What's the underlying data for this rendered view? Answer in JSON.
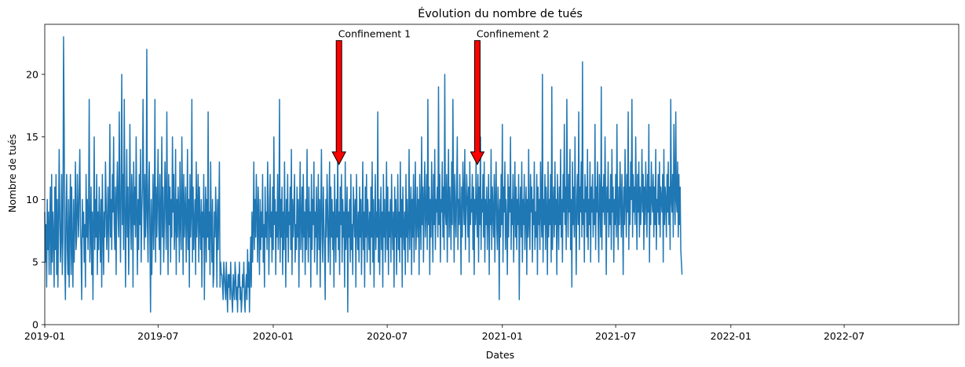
{
  "chart_data": {
    "type": "line",
    "title": "Évolution du nombre de tués",
    "xlabel": "Dates",
    "ylabel": "Nombre de tués",
    "xlim": [
      "2019-01-01",
      "2022-12-31"
    ],
    "ylim": [
      0,
      24
    ],
    "grid": false,
    "line_color": "#1f77b4",
    "x_ticks": [
      {
        "date": "2019-01-01",
        "label": "2019-01"
      },
      {
        "date": "2019-07-01",
        "label": "2019-07"
      },
      {
        "date": "2020-01-01",
        "label": "2020-01"
      },
      {
        "date": "2020-07-01",
        "label": "2020-07"
      },
      {
        "date": "2021-01-01",
        "label": "2021-01"
      },
      {
        "date": "2021-07-01",
        "label": "2021-07"
      },
      {
        "date": "2022-01-01",
        "label": "2022-01"
      },
      {
        "date": "2022-07-01",
        "label": "2022-07"
      }
    ],
    "y_ticks": [
      0,
      5,
      10,
      15,
      20
    ],
    "series": [
      {
        "name": "Nombre de tués",
        "start_date": "2019-01-01",
        "frequency": "daily",
        "values": [
          9,
          5,
          8,
          3,
          10,
          6,
          9,
          4,
          8,
          11,
          4,
          12,
          5,
          9,
          7,
          3,
          11,
          6,
          12,
          4,
          10,
          3,
          8,
          14,
          9,
          5,
          7,
          12,
          4,
          7,
          23,
          16,
          5,
          2,
          9,
          12,
          6,
          4,
          10,
          3,
          8,
          12,
          4,
          11,
          6,
          3,
          10,
          5,
          8,
          13,
          6,
          7,
          12,
          9,
          7,
          11,
          14,
          8,
          6,
          2,
          10,
          7,
          9,
          5,
          8,
          3,
          12,
          7,
          10,
          6,
          9,
          18,
          5,
          7,
          11,
          4,
          9,
          2,
          8,
          15,
          6,
          10,
          7,
          12,
          4,
          9,
          6,
          11,
          8,
          5,
          10,
          3,
          12,
          8,
          4,
          9,
          7,
          13,
          10,
          6,
          8,
          11,
          5,
          9,
          16,
          7,
          10,
          6,
          12,
          9,
          15,
          8,
          6,
          11,
          4,
          10,
          13,
          9,
          7,
          17,
          10,
          5,
          11,
          20,
          8,
          12,
          6,
          18,
          10,
          3,
          9,
          14,
          7,
          11,
          4,
          8,
          16,
          9,
          6,
          12,
          10,
          3,
          13,
          8,
          11,
          7,
          15,
          9,
          4,
          10,
          6,
          12,
          8,
          14,
          5,
          9,
          11,
          18,
          10,
          6,
          12,
          7,
          9,
          22,
          8,
          5,
          11,
          13,
          7,
          1,
          10,
          4,
          8,
          12,
          6,
          9,
          18,
          5,
          11,
          7,
          10,
          14,
          8,
          6,
          12,
          4,
          9,
          15,
          7,
          11,
          5,
          8,
          13,
          10,
          6,
          17,
          9,
          4,
          12,
          8,
          11,
          5,
          10,
          7,
          15,
          9,
          12,
          6,
          8,
          14,
          4,
          10,
          7,
          11,
          9,
          5,
          13,
          8,
          6,
          15,
          10,
          4,
          12,
          7,
          9,
          11,
          5,
          8,
          14,
          6,
          10,
          3,
          12,
          7,
          9,
          18,
          5,
          11,
          6,
          8,
          10,
          4,
          13,
          7,
          9,
          12,
          5,
          11,
          8,
          6,
          10,
          3,
          9,
          7,
          12,
          2,
          8,
          11,
          5,
          10,
          7,
          17,
          6,
          9,
          4,
          13,
          8,
          5,
          10,
          3,
          4,
          9,
          7,
          11,
          8,
          3,
          10,
          6,
          9,
          13,
          3,
          5,
          4,
          4,
          3,
          2,
          5,
          4,
          3,
          2,
          5,
          3,
          1,
          4,
          3,
          4,
          2,
          5,
          3,
          2,
          1,
          4,
          3,
          2,
          5,
          4,
          2,
          3,
          1,
          4,
          3,
          5,
          2,
          3,
          1,
          2,
          4,
          3,
          5,
          2,
          1,
          3,
          4,
          2,
          6,
          3,
          5,
          1,
          4,
          7,
          3,
          9,
          5,
          8,
          13,
          6,
          10,
          7,
          12,
          9,
          5,
          11,
          8,
          4,
          10,
          6,
          9,
          7,
          12,
          5,
          8,
          3,
          11,
          7,
          9,
          6,
          13,
          10,
          4,
          8,
          12,
          7,
          9,
          5,
          11,
          6,
          15,
          8,
          10,
          4,
          9,
          7,
          12,
          6,
          8,
          18,
          5,
          10,
          7,
          11,
          4,
          9,
          6,
          13,
          8,
          3,
          10,
          7,
          12,
          5,
          9,
          8,
          11,
          6,
          14,
          4,
          10,
          7,
          9,
          12,
          5,
          8,
          6,
          11,
          7,
          10,
          3,
          9,
          13,
          6,
          8,
          11,
          5,
          12,
          7,
          9,
          4,
          10,
          6,
          14,
          8,
          5,
          11,
          7,
          9,
          3,
          12,
          6,
          10,
          8,
          13,
          5,
          9,
          7,
          11,
          4,
          8,
          12,
          6,
          10,
          3,
          9,
          14,
          7,
          5,
          11,
          8,
          6,
          2,
          10,
          7,
          12,
          9,
          5,
          8,
          13,
          4,
          11,
          7,
          10,
          6,
          9,
          3,
          12,
          8,
          5,
          10,
          7,
          14,
          6,
          9,
          4,
          11,
          8,
          12,
          5,
          10,
          7,
          9,
          3,
          13,
          6,
          8,
          11,
          1,
          9,
          7,
          10,
          5,
          12,
          6,
          8,
          4,
          11,
          9,
          7,
          10,
          3,
          12,
          8,
          6,
          9,
          5,
          11,
          7,
          10,
          4,
          8,
          13,
          6,
          9,
          3,
          11,
          7,
          12,
          5,
          10,
          8,
          6,
          9,
          4,
          11,
          7,
          13,
          5,
          10,
          3,
          8,
          12,
          6,
          9,
          7,
          17,
          5,
          10,
          4,
          8,
          11,
          6,
          9,
          3,
          12,
          7,
          10,
          5,
          8,
          13,
          6,
          11,
          4,
          9,
          7,
          10,
          5,
          12,
          8,
          6,
          9,
          3,
          11,
          7,
          10,
          4,
          8,
          12,
          6,
          9,
          5,
          13,
          7,
          10,
          3,
          11,
          8,
          6,
          9,
          4,
          12,
          7,
          10,
          5,
          8,
          14,
          6,
          9,
          11,
          4,
          10,
          7,
          12,
          5,
          9,
          13,
          6,
          8,
          11,
          7,
          10,
          4,
          12,
          9,
          6,
          15,
          8,
          11,
          5,
          10,
          13,
          7,
          9,
          12,
          6,
          18,
          8,
          11,
          4,
          10,
          7,
          13,
          9,
          5,
          12,
          8,
          14,
          6,
          10,
          9,
          11,
          7,
          19,
          8,
          12,
          5,
          10,
          9,
          13,
          7,
          11,
          6,
          20,
          9,
          8,
          12,
          5,
          10,
          14,
          7,
          11,
          9,
          6,
          13,
          8,
          18,
          10,
          5,
          12,
          9,
          7,
          11,
          15,
          6,
          10,
          8,
          12,
          9,
          4,
          11,
          7,
          13,
          10,
          8,
          14,
          6,
          9,
          12,
          10,
          7,
          11,
          5,
          13,
          8,
          10,
          9,
          12,
          6,
          11,
          4,
          10,
          8,
          13,
          9,
          7,
          12,
          5,
          11,
          8,
          15,
          6,
          10,
          9,
          12,
          7,
          13,
          5,
          10,
          8,
          11,
          6,
          9,
          12,
          4,
          10,
          8,
          14,
          6,
          11,
          9,
          7,
          12,
          5,
          10,
          13,
          8,
          6,
          11,
          9,
          2,
          10,
          7,
          12,
          8,
          16,
          5,
          11,
          9,
          13,
          6,
          10,
          8,
          4,
          12,
          7,
          11,
          9,
          15,
          6,
          10,
          8,
          12,
          5,
          9,
          13,
          7,
          11,
          6,
          10,
          8,
          12,
          2,
          9,
          11,
          7,
          13,
          5,
          10,
          8,
          12,
          6,
          9,
          11,
          4,
          10,
          7,
          14,
          8,
          6,
          12,
          9,
          11,
          5,
          10,
          8,
          13,
          6,
          9,
          7,
          12,
          4,
          11,
          8,
          10,
          6,
          13,
          9,
          7,
          20,
          5,
          10,
          8,
          12,
          6,
          11,
          9,
          4,
          13,
          7,
          10,
          8,
          12,
          5,
          19,
          6,
          9,
          11,
          7,
          13,
          8,
          10,
          4,
          12,
          9,
          6,
          11,
          8,
          14,
          7,
          10,
          5,
          12,
          9,
          16,
          8,
          11,
          6,
          18,
          10,
          7,
          12,
          9,
          14,
          6,
          10,
          3,
          13,
          8,
          11,
          7,
          15,
          9,
          4,
          10,
          12,
          8,
          17,
          6,
          11,
          9,
          13,
          7,
          21,
          8,
          10,
          5,
          12,
          9,
          11,
          7,
          14,
          6,
          10,
          8,
          13,
          5,
          11,
          9,
          12,
          7,
          10,
          8,
          16,
          6,
          11,
          9,
          13,
          8,
          5,
          12,
          10,
          7,
          19,
          6,
          11,
          9,
          12,
          8,
          15,
          10,
          4,
          11,
          9,
          13,
          7,
          10,
          8,
          12,
          6,
          14,
          9,
          11,
          5,
          10,
          8,
          12,
          7,
          16,
          9,
          6,
          11,
          8,
          13,
          10,
          7,
          12,
          9,
          4,
          11,
          8,
          14,
          10,
          7,
          12,
          9,
          17,
          6,
          11,
          8,
          13,
          10,
          18,
          7,
          12,
          9,
          11,
          8,
          15,
          10,
          6,
          12,
          9,
          13,
          7,
          11,
          8,
          10,
          14,
          9,
          12,
          6,
          11,
          8,
          13,
          10,
          7,
          12,
          9,
          16,
          5,
          11,
          8,
          13,
          10,
          9,
          12,
          7,
          11,
          8,
          14,
          6,
          10,
          9,
          12,
          8,
          13,
          7,
          11,
          10,
          9,
          12,
          5,
          14,
          8,
          11,
          10,
          7,
          12,
          9,
          13,
          8,
          11,
          6,
          18,
          10,
          9,
          12,
          7,
          16,
          11,
          8,
          17,
          10,
          9,
          13,
          7,
          12,
          8,
          11,
          6,
          5,
          4
        ]
      }
    ],
    "annotations": [
      {
        "text": "Confinement 1",
        "arrow_date": "2020-04-15",
        "arrow_tip_y": 12.8,
        "text_y": 22.7,
        "arrow_color": "#ff0000"
      },
      {
        "text": "Confinement 2",
        "arrow_date": "2020-11-22",
        "arrow_tip_y": 12.8,
        "text_y": 22.7,
        "arrow_color": "#ff0000"
      }
    ]
  }
}
